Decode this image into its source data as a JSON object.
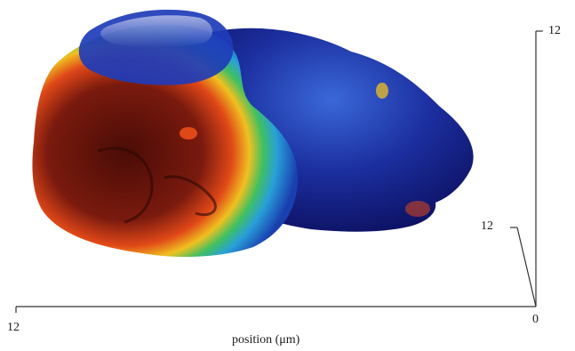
{
  "figure": {
    "axes": {
      "x_axis_label": "position (μm)",
      "x_tick_left": "12",
      "origin_label": "0",
      "vertical_axis_top_label": "12",
      "depth_axis_label": "12"
    },
    "colors": {
      "background": "#ffffff",
      "axis_line": "#333333",
      "surface_low": "#10208a",
      "surface_mid": "#28a0d8",
      "surface_hot": "#e04818",
      "surface_peak": "#4a0c06"
    }
  }
}
